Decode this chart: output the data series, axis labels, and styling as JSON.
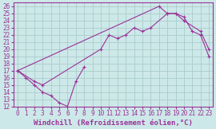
{
  "xlabel": "Windchill (Refroidissement éolien,°C)",
  "background_color": "#cde8e8",
  "grid_color": "#aacccc",
  "line_color": "#993399",
  "xlim": [
    -0.5,
    23.5
  ],
  "ylim": [
    12,
    26.5
  ],
  "xticks": [
    0,
    1,
    2,
    3,
    4,
    5,
    6,
    7,
    8,
    9,
    10,
    11,
    12,
    13,
    14,
    15,
    16,
    17,
    18,
    19,
    20,
    21,
    22,
    23
  ],
  "yticks": [
    12,
    13,
    14,
    15,
    16,
    17,
    18,
    19,
    20,
    21,
    22,
    23,
    24,
    25,
    26
  ],
  "series": [
    {
      "segments": [
        {
          "x": [
            0,
            1,
            2,
            3,
            4,
            5,
            6,
            7,
            8
          ],
          "y": [
            17,
            16,
            15,
            14,
            13.5,
            12.5,
            12,
            15.5,
            17.5
          ]
        }
      ]
    },
    {
      "segments": [
        {
          "x": [
            0,
            2,
            3,
            10,
            11,
            12,
            13,
            14,
            15,
            16,
            18,
            19,
            20,
            22,
            23
          ],
          "y": [
            17,
            15.5,
            15,
            20,
            22,
            21.5,
            22,
            23,
            22.5,
            23,
            25,
            25,
            24,
            22.5,
            20
          ]
        }
      ]
    },
    {
      "segments": [
        {
          "x": [
            0,
            17,
            18,
            19,
            20,
            21,
            22,
            23
          ],
          "y": [
            17,
            26,
            25,
            25,
            24.5,
            22.5,
            22,
            19
          ]
        }
      ]
    }
  ],
  "tick_fontsize": 5.5,
  "xlabel_fontsize": 6.5
}
